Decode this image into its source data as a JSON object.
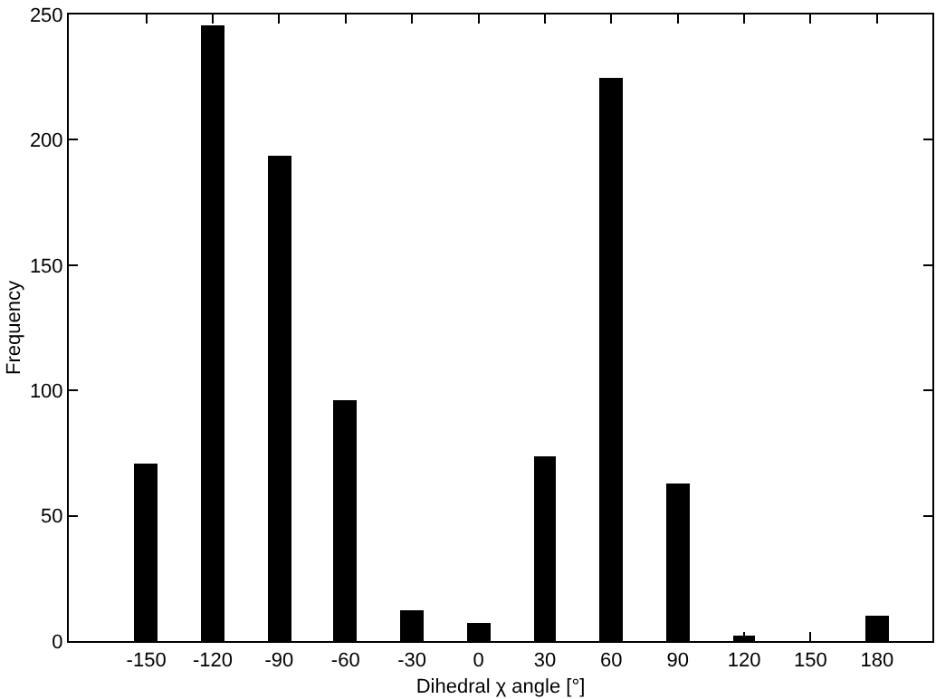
{
  "chart_data": {
    "type": "bar",
    "xlabel": "Dihedral χ angle [°]",
    "ylabel": "Frequency",
    "x": [
      -150,
      -120,
      -90,
      -60,
      -30,
      0,
      30,
      60,
      90,
      120,
      150,
      180
    ],
    "values": [
      71,
      246,
      194,
      96,
      12,
      7,
      74,
      225,
      63,
      2,
      0,
      10
    ],
    "color": "#000000",
    "xlim": [
      -185,
      205
    ],
    "xticks": [
      -150,
      -120,
      -90,
      -60,
      -30,
      0,
      30,
      60,
      90,
      120,
      150,
      180
    ],
    "ylim": [
      0,
      250
    ],
    "yticks": [
      0,
      50,
      100,
      150,
      200,
      250
    ]
  }
}
